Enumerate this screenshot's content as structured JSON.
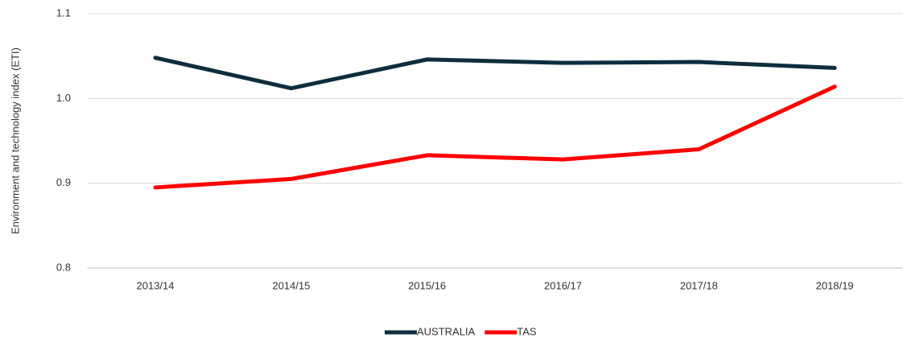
{
  "chart_data": {
    "type": "line",
    "y_label": "Environment and technology index (ETI)",
    "categories": [
      "2013/14",
      "2014/15",
      "2015/16",
      "2016/17",
      "2017/18",
      "2018/19"
    ],
    "series": [
      {
        "name": "AUSTRALIA",
        "color": "#0e2d3d",
        "values": [
          1.048,
          1.012,
          1.046,
          1.042,
          1.043,
          1.036
        ]
      },
      {
        "name": "TAS",
        "color": "#ff0000",
        "values": [
          0.895,
          0.905,
          0.933,
          0.928,
          0.94,
          1.014
        ]
      }
    ],
    "ylim": [
      0.8,
      1.1
    ],
    "yticks": [
      0.8,
      0.9,
      {
        "value": 1,
        "label": "1.0"
      },
      1.1
    ],
    "grid": true,
    "legend": "bottom"
  }
}
